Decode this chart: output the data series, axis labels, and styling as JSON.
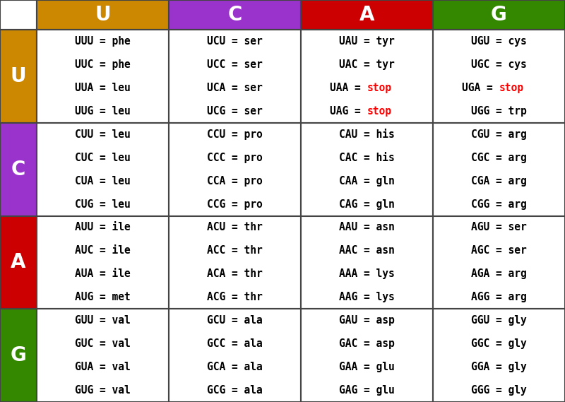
{
  "col_headers": [
    "U",
    "C",
    "A",
    "G"
  ],
  "col_header_colors": [
    "#CC8800",
    "#9933CC",
    "#CC0000",
    "#338800"
  ],
  "row_headers": [
    "U",
    "C",
    "A",
    "G"
  ],
  "row_header_colors": [
    "#CC8800",
    "#9933CC",
    "#CC0000",
    "#338800"
  ],
  "header_text_color": "#FFFFFF",
  "cell_bg_color": "#FFFFFF",
  "cell_text_color": "#000000",
  "stop_color": "#FF0000",
  "border_color": "#444444",
  "cells": [
    [
      [
        "UUU = phe",
        "UUC = phe",
        "UUA = leu",
        "UUG = leu"
      ],
      [
        "UCU = ser",
        "UCC = ser",
        "UCA = ser",
        "UCG = ser"
      ],
      [
        "UAU = tyr",
        "UAC = tyr",
        "UAA = stop",
        "UAG = stop"
      ],
      [
        "UGU = cys",
        "UGC = cys",
        "UGA = stop",
        "UGG = trp"
      ]
    ],
    [
      [
        "CUU = leu",
        "CUC = leu",
        "CUA = leu",
        "CUG = leu"
      ],
      [
        "CCU = pro",
        "CCC = pro",
        "CCA = pro",
        "CCG = pro"
      ],
      [
        "CAU = his",
        "CAC = his",
        "CAA = gln",
        "CAG = gln"
      ],
      [
        "CGU = arg",
        "CGC = arg",
        "CGA = arg",
        "CGG = arg"
      ]
    ],
    [
      [
        "AUU = ile",
        "AUC = ile",
        "AUA = ile",
        "AUG = met"
      ],
      [
        "ACU = thr",
        "ACC = thr",
        "ACA = thr",
        "ACG = thr"
      ],
      [
        "AAU = asn",
        "AAC = asn",
        "AAA = lys",
        "AAG = lys"
      ],
      [
        "AGU = ser",
        "AGC = ser",
        "AGA = arg",
        "AGG = arg"
      ]
    ],
    [
      [
        "GUU = val",
        "GUC = val",
        "GUA = val",
        "GUG = val"
      ],
      [
        "GCU = ala",
        "GCC = ala",
        "GCA = ala",
        "GCG = ala"
      ],
      [
        "GAU = asp",
        "GAC = asp",
        "GAA = glu",
        "GAG = glu"
      ],
      [
        "GGU = gly",
        "GGC = gly",
        "GGA = gly",
        "GGG = gly"
      ]
    ]
  ],
  "figsize": [
    8.0,
    5.69
  ],
  "dpi": 100
}
